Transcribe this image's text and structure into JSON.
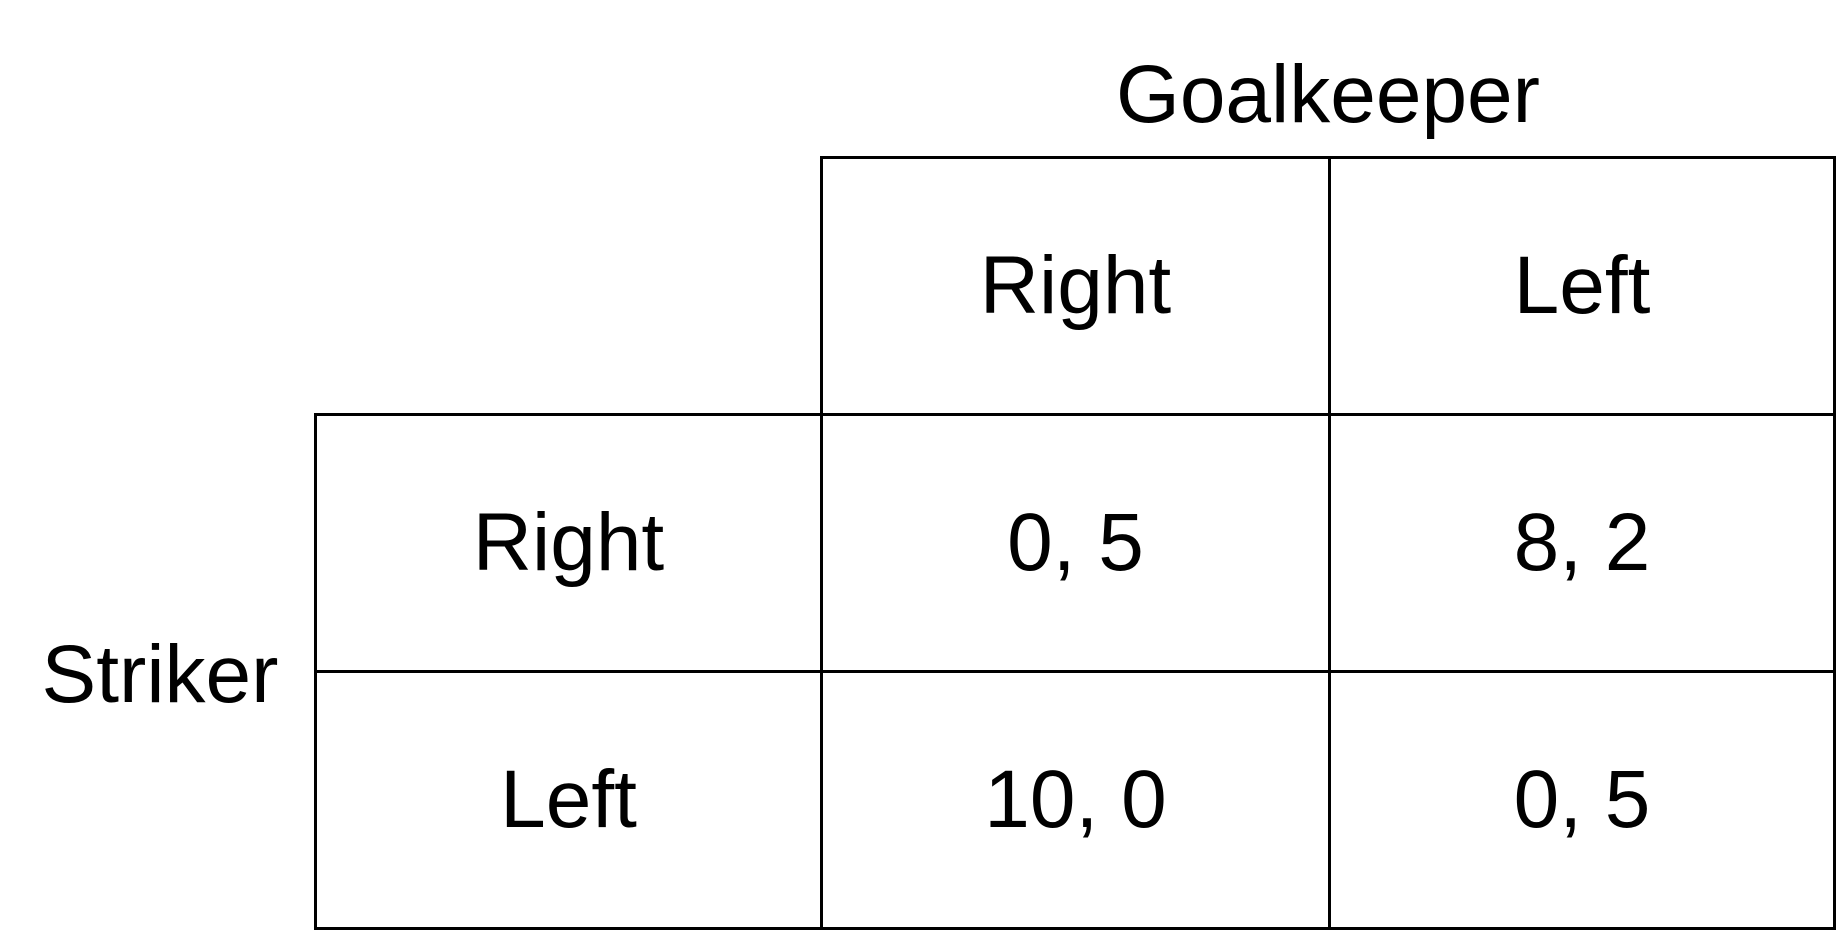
{
  "players": {
    "column": "Goalkeeper",
    "row": "Striker"
  },
  "column_strategies": [
    "Right",
    "Left"
  ],
  "row_strategies": [
    "Right",
    "Left"
  ],
  "payoffs": [
    [
      "0, 5",
      "8, 2"
    ],
    [
      "10, 0",
      "0, 5"
    ]
  ]
}
